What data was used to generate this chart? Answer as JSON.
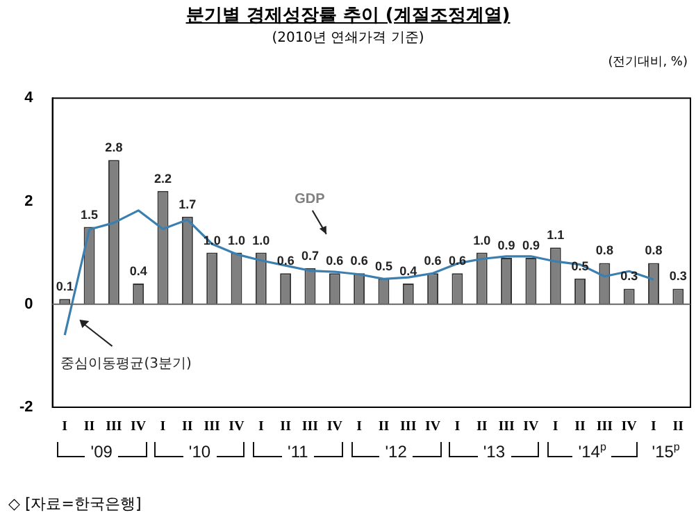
{
  "chart_data": {
    "type": "bar",
    "title": "분기별 경제성장률 추이 (계절조정계열)",
    "subtitle": "(2010년 연쇄가격 기준)",
    "categories": [
      "I",
      "II",
      "III",
      "IV",
      "I",
      "II",
      "III",
      "IV",
      "I",
      "II",
      "III",
      "IV",
      "I",
      "II",
      "III",
      "IV",
      "I",
      "II",
      "III",
      "IV",
      "I",
      "II",
      "III",
      "IV",
      "I",
      "II"
    ],
    "series": [
      {
        "name": "GDP",
        "color": "#808080",
        "values": [
          0.1,
          1.5,
          2.8,
          0.4,
          2.2,
          1.7,
          1.0,
          1.0,
          1.0,
          0.6,
          0.7,
          0.6,
          0.6,
          0.5,
          0.4,
          0.6,
          0.6,
          1.0,
          0.9,
          0.9,
          1.1,
          0.5,
          0.8,
          0.3,
          0.8,
          0.3
        ],
        "value_labels": [
          "0.1",
          "1.5",
          "2.8",
          "0.4",
          "2.2",
          "1.7",
          "1.0",
          "1.0",
          "1.0",
          "0.6",
          "0.7",
          "0.6",
          "0.6",
          "0.5",
          "0.4",
          "0.6",
          "0.6",
          "1.0",
          "0.9",
          "0.9",
          "1.1",
          "0.5",
          "0.8",
          "0.3",
          "0.8",
          "0.3"
        ]
      },
      {
        "name": "중심이동평균(3분기)",
        "type": "line",
        "color": "#3a7fb0",
        "values": [
          -0.6,
          1.45,
          1.58,
          1.82,
          1.46,
          1.64,
          1.17,
          0.97,
          0.85,
          0.75,
          0.65,
          0.63,
          0.58,
          0.49,
          0.52,
          0.6,
          0.79,
          0.88,
          0.93,
          0.93,
          0.83,
          0.77,
          0.54,
          0.64,
          0.48,
          null
        ]
      }
    ],
    "ylim": [
      -2,
      4
    ],
    "yticks": [
      -2,
      0,
      2,
      4
    ],
    "grid": false,
    "legend": false,
    "marker": "none",
    "line_style": "solid",
    "ref_lines": [
      {
        "axis": "y",
        "value": 0,
        "color": "#666666"
      }
    ],
    "annotations": [
      "(전기대비, %)",
      "◇ [자료=한국은행]",
      "'09",
      "'10",
      "'11",
      "'12",
      "'13",
      "'14$^{p}$",
      "'15$^{p}$"
    ]
  }
}
